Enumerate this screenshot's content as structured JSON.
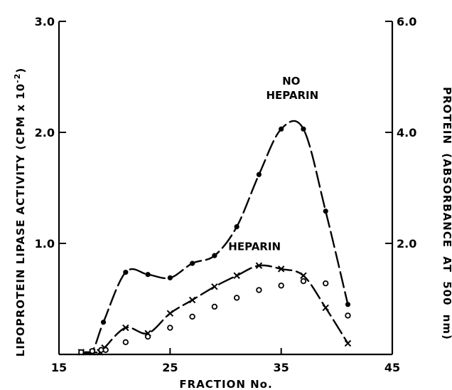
{
  "chart_data": {
    "type": "line",
    "xlabel": "FRACTION No.",
    "ylabel_left": "LIPOPROTEIN LIPASE ACTIVITY (CPM x 10",
    "ylabel_left_sup": "-2",
    "ylabel_left_close": ")",
    "ylabel_right": "PROTEIN (ABSORBANCE AT 500 nm)",
    "xlim": [
      15,
      45
    ],
    "ylim_left": [
      0,
      3.0
    ],
    "ylim_right": [
      0,
      6.0
    ],
    "xticks": [
      15,
      25,
      35,
      45
    ],
    "xtick_labels": [
      "15",
      "25",
      "35",
      "45"
    ],
    "yticks_left": [
      1.0,
      2.0,
      3.0
    ],
    "ytick_labels_left": [
      "1.0",
      "2.0",
      "3.0"
    ],
    "yticks_right": [
      2.0,
      4.0,
      6.0
    ],
    "ytick_labels_right": [
      "2.0",
      "4.0",
      "6.0"
    ],
    "annotations": [
      {
        "text": "NO",
        "x": 35.9,
        "y": 2.43
      },
      {
        "text": "HEPARIN",
        "x": 36.0,
        "y": 2.3
      },
      {
        "text": "HEPARIN",
        "x": 32.6,
        "y": 0.94
      }
    ],
    "series": [
      {
        "marker": "dot",
        "axis": "left",
        "x": [
          17,
          18,
          19,
          21,
          23,
          25,
          27,
          29,
          31,
          33,
          35,
          37,
          39,
          41
        ],
        "y": [
          0.02,
          0.03,
          0.29,
          0.74,
          0.72,
          0.69,
          0.82,
          0.89,
          1.15,
          1.62,
          2.03,
          2.03,
          1.29,
          0.45
        ]
      },
      {
        "marker": "x",
        "axis": "left",
        "x": [
          17,
          18,
          18.7,
          19.1,
          21,
          23,
          25,
          27,
          29,
          31,
          33,
          35,
          37,
          39,
          41
        ],
        "y": [
          0.02,
          0.02,
          0.02,
          0.06,
          0.24,
          0.19,
          0.37,
          0.49,
          0.61,
          0.71,
          0.8,
          0.77,
          0.71,
          0.42,
          0.1
        ]
      },
      {
        "marker": "circle",
        "axis": "left",
        "x": [
          17,
          18,
          18.8,
          19.2,
          21,
          23,
          25,
          27,
          29,
          31,
          33,
          35,
          37,
          39,
          41
        ],
        "y": [
          0.02,
          0.03,
          0.04,
          0.04,
          0.11,
          0.16,
          0.24,
          0.34,
          0.43,
          0.51,
          0.58,
          0.62,
          0.66,
          0.64,
          0.35
        ]
      }
    ]
  }
}
